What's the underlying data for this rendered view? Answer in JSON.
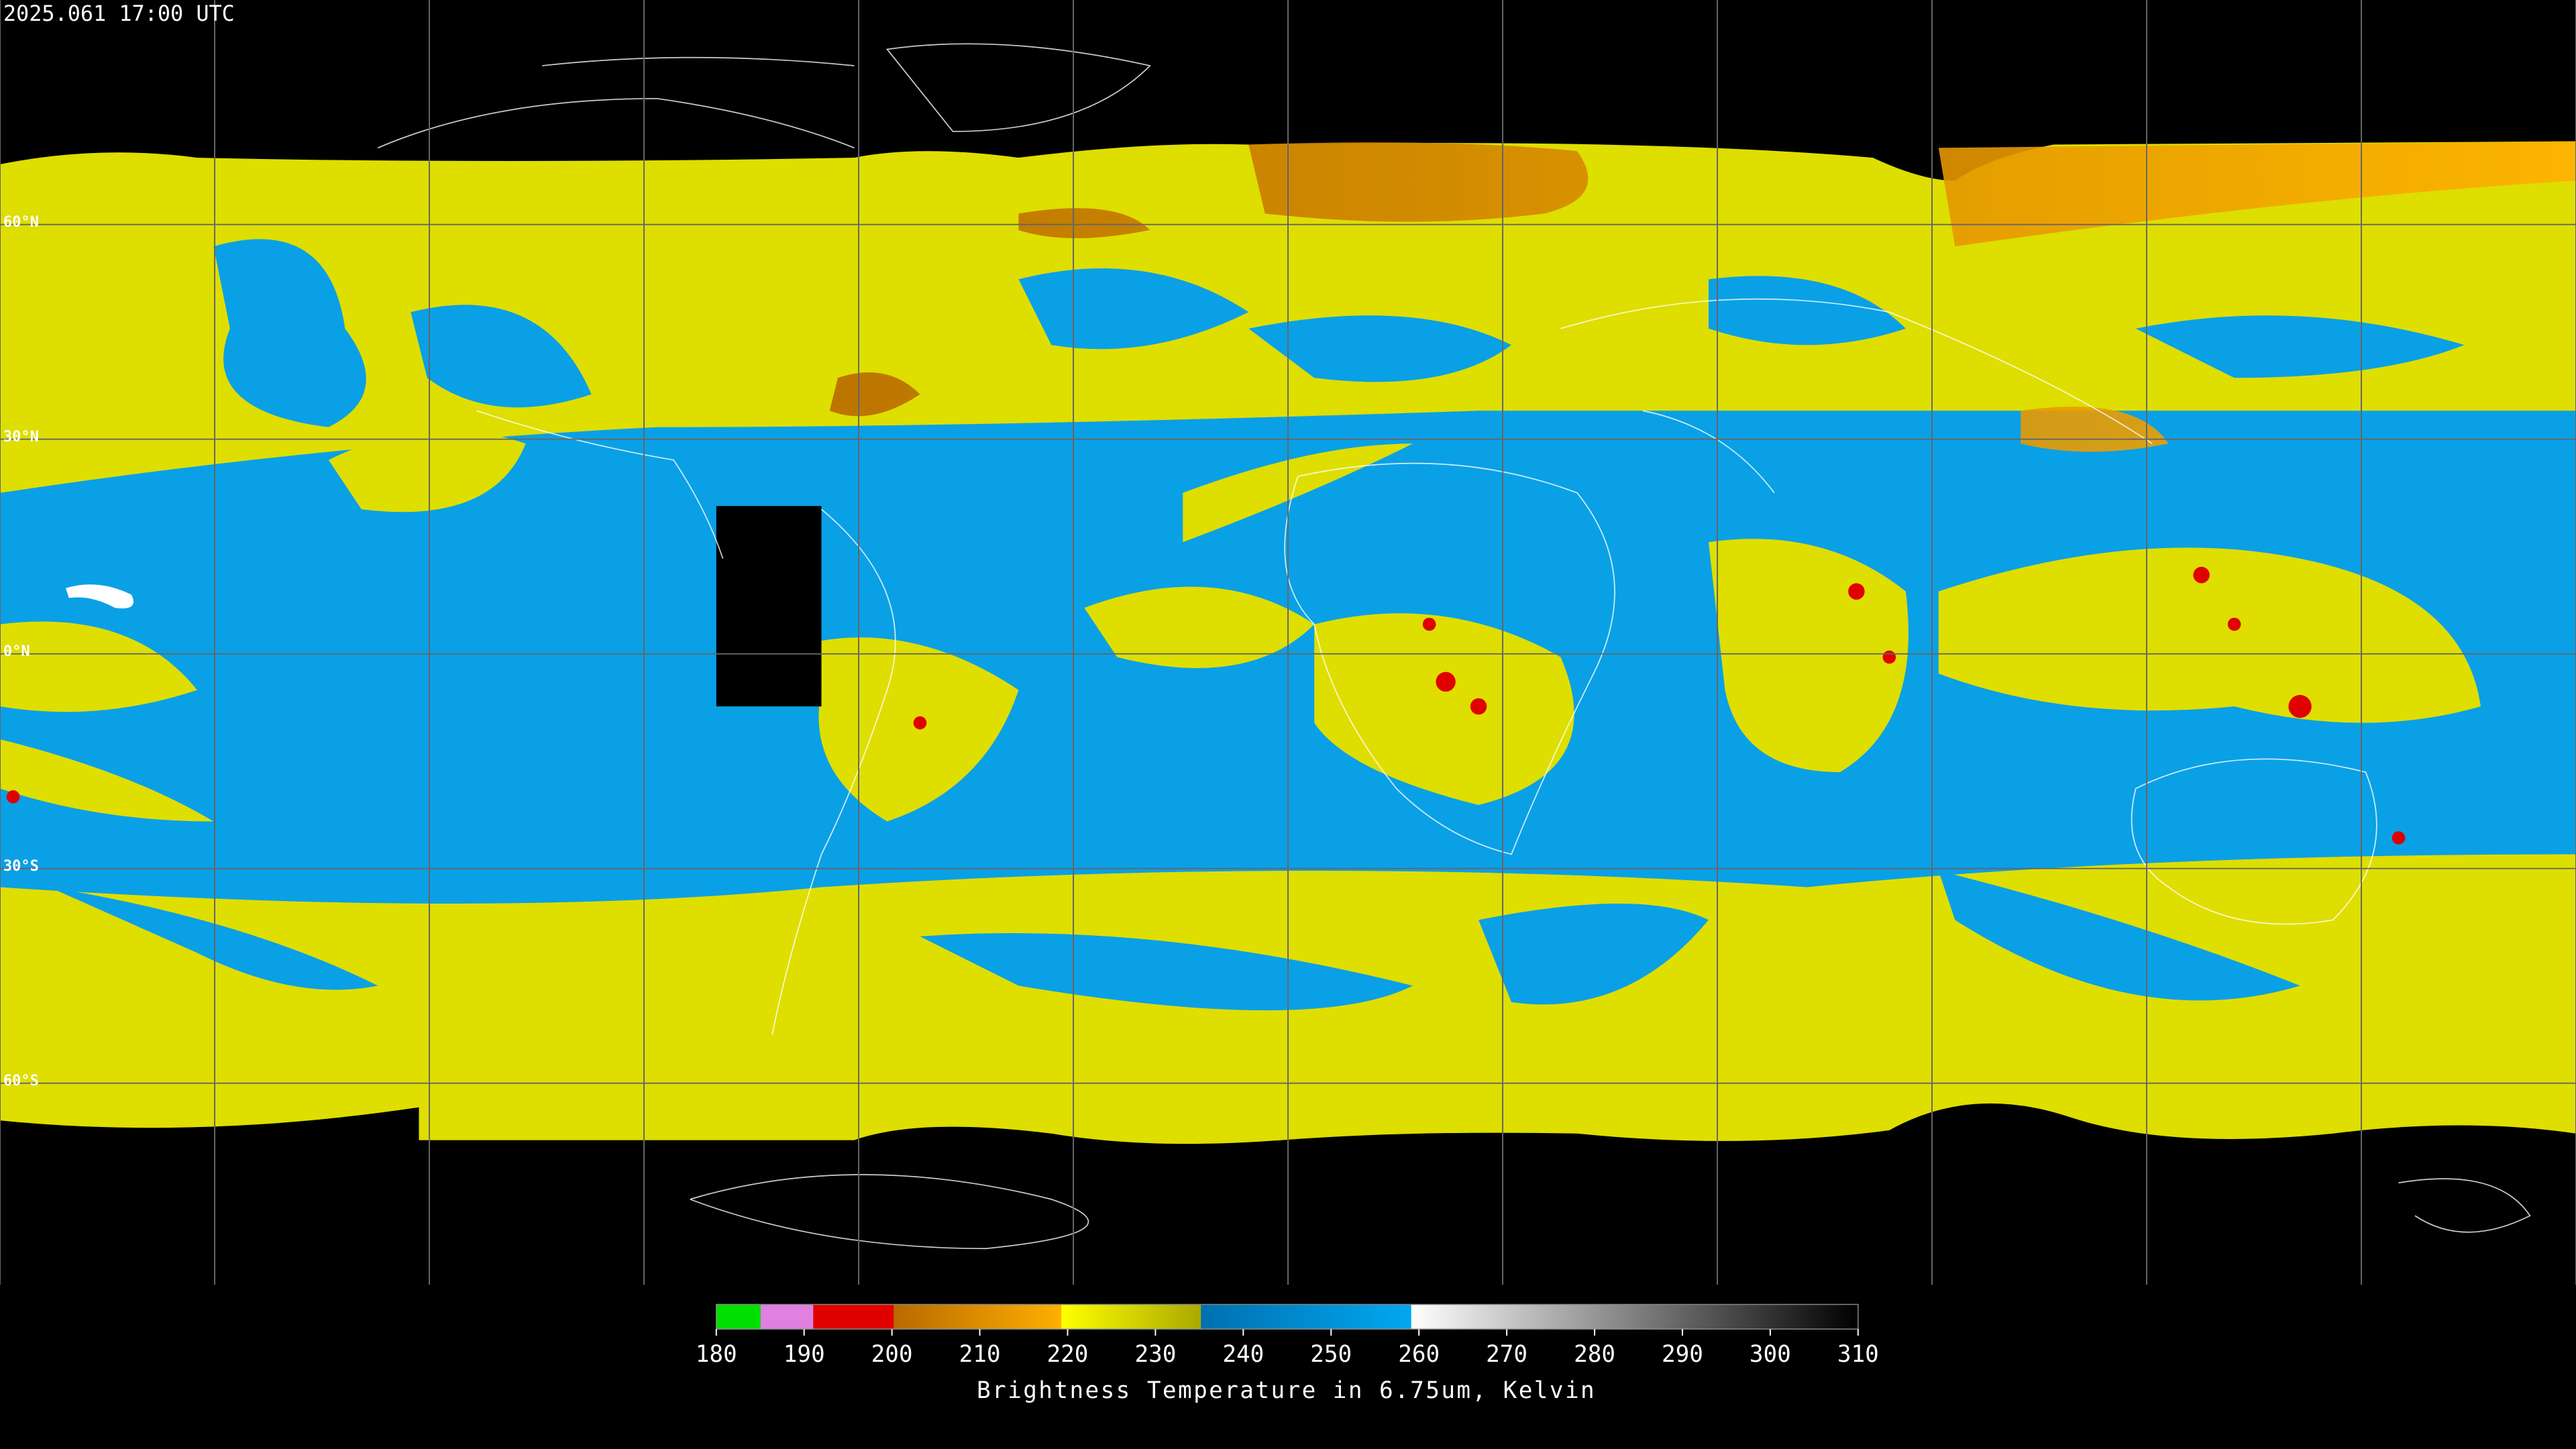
{
  "header": {
    "timestamp": "2025.061 17:00 UTC"
  },
  "map": {
    "lat_labels": [
      "60°N",
      "30°N",
      "0°N",
      "30°S",
      "60°S"
    ]
  },
  "colorbar": {
    "lim": [
      180,
      310
    ],
    "ticks": [
      180,
      190,
      200,
      210,
      220,
      230,
      240,
      250,
      260,
      270,
      280,
      290,
      300,
      310
    ],
    "label": "Brightness Temperature in 6.75um, Kelvin"
  }
}
